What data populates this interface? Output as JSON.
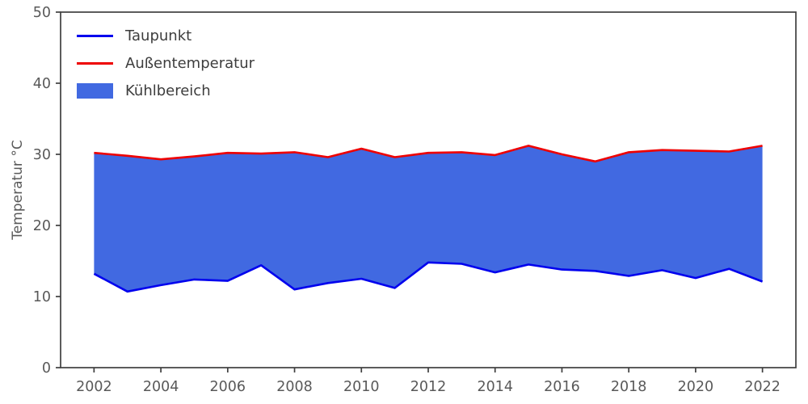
{
  "figure": {
    "background": "#ffffff",
    "axis_color": "#3f3f3f",
    "tick_label_color": "#595959"
  },
  "legend": {
    "position": "upper-left",
    "items": [
      {
        "label": "Taupunkt",
        "type": "line",
        "color": "#0000ee"
      },
      {
        "label": "Außentemperatur",
        "type": "line",
        "color": "#ee0000"
      },
      {
        "label": "Kühlbereich",
        "type": "patch",
        "color": "#4169e1"
      }
    ]
  },
  "chart_data": {
    "type": "area",
    "title": "",
    "xlabel": "",
    "ylabel": "Temperatur °C",
    "xlim": [
      2001,
      2023
    ],
    "ylim": [
      0,
      50
    ],
    "xticks": [
      2002,
      2004,
      2006,
      2008,
      2010,
      2012,
      2014,
      2016,
      2018,
      2020,
      2022
    ],
    "yticks": [
      0,
      10,
      20,
      30,
      40,
      50
    ],
    "grid": false,
    "legend_position": "upper-left",
    "x": [
      2002,
      2003,
      2004,
      2005,
      2006,
      2007,
      2008,
      2009,
      2010,
      2011,
      2012,
      2013,
      2014,
      2015,
      2016,
      2017,
      2018,
      2019,
      2020,
      2021,
      2022
    ],
    "series": [
      {
        "name": "Taupunkt",
        "color": "#0000ee",
        "values": [
          13.2,
          10.7,
          11.6,
          12.4,
          12.2,
          14.4,
          11.0,
          11.9,
          12.5,
          11.2,
          14.8,
          14.6,
          13.4,
          14.5,
          13.8,
          13.6,
          12.9,
          13.7,
          12.6,
          13.9,
          12.1
        ]
      },
      {
        "name": "Außentemperatur",
        "color": "#ee0000",
        "values": [
          30.2,
          29.8,
          29.3,
          29.7,
          30.2,
          30.1,
          30.3,
          29.6,
          30.8,
          29.6,
          30.2,
          30.3,
          29.9,
          31.2,
          30.0,
          29.0,
          30.3,
          30.6,
          30.5,
          30.4,
          31.2
        ]
      }
    ],
    "fill_between": {
      "name": "Kühlbereich",
      "color": "#4169e1",
      "lower": "Taupunkt",
      "upper": "Außentemperatur"
    }
  }
}
